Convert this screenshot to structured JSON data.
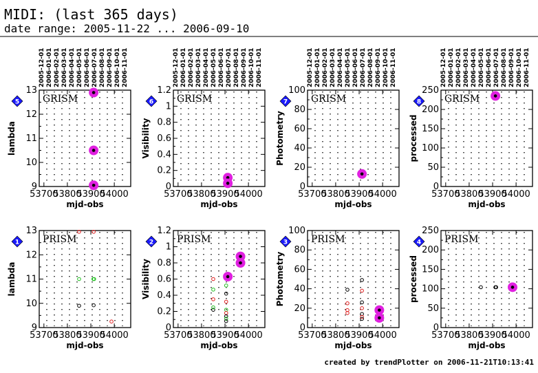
{
  "header": {
    "title": "MIDI: (last 365 days)",
    "subtitle": "date range: 2005-11-22 ... 2006-09-10"
  },
  "footer": "created by trendPlotter on 2006-11-21T10:13:41",
  "colors": {
    "highlight": "#e020e0",
    "badge": "#1a1aff",
    "red": "#e02020",
    "green": "#20c020"
  },
  "chart_data": [
    {
      "type": "scatter",
      "panel": 5,
      "label": "GRISM",
      "ylabel": "lambda",
      "xlabel": "mjd-obs",
      "ylim": [
        9,
        13
      ],
      "yticks": [
        9,
        10,
        11,
        12,
        13
      ],
      "xlim": [
        53680,
        54070
      ],
      "xticks": [
        53700,
        53800,
        53900,
        54000
      ],
      "xticklabels": [
        "53700",
        "53800",
        "53900",
        "54000"
      ],
      "top_dates": [
        "2005-12-01",
        "2006-01-01",
        "2006-02-01",
        "2006-03-01",
        "2006-04-01",
        "2006-05-01",
        "2006-06-01",
        "2006-07-01",
        "2006-08-01",
        "2006-09-01",
        "2006-10-01",
        "2006-11-01"
      ],
      "points": [
        {
          "x": 53912,
          "y": 12.9,
          "hl": true
        },
        {
          "x": 53912,
          "y": 10.5,
          "hl": true
        },
        {
          "x": 53912,
          "y": 9.05,
          "hl": true
        }
      ]
    },
    {
      "type": "scatter",
      "panel": 6,
      "label": "GRISM",
      "ylabel": "Visibility",
      "xlabel": "mjd-obs",
      "ylim": [
        0,
        1.2
      ],
      "yticks": [
        0,
        0.2,
        0.4,
        0.6,
        0.8,
        1,
        1.2
      ],
      "xlim": [
        53680,
        54070
      ],
      "xticks": [
        53700,
        53800,
        53900,
        54000
      ],
      "xticklabels": [
        "53700",
        "53800",
        "53900",
        "54000"
      ],
      "top_dates": [
        "2005-12-01",
        "2006-01-01",
        "2006-02-01",
        "2006-03-01",
        "2006-04-01",
        "2006-05-01",
        "2006-06-01",
        "2006-07-01",
        "2006-08-01",
        "2006-09-01",
        "2006-10-01",
        "2006-11-01"
      ],
      "points": [
        {
          "x": 53912,
          "y": 0.11,
          "hl": true
        },
        {
          "x": 53912,
          "y": 0.04,
          "hl": true
        }
      ]
    },
    {
      "type": "scatter",
      "panel": 7,
      "label": "GRISM",
      "ylabel": "Photometry",
      "xlabel": "mjd-obs",
      "ylim": [
        0,
        100
      ],
      "yticks": [
        0,
        20,
        40,
        60,
        80,
        100
      ],
      "xlim": [
        53680,
        54070
      ],
      "xticks": [
        53700,
        53800,
        53900,
        54000
      ],
      "xticklabels": [
        "53700",
        "53800",
        "53900",
        "54000"
      ],
      "top_dates": [
        "2005-12-01",
        "2006-01-01",
        "2006-02-01",
        "2006-03-01",
        "2006-04-01",
        "2006-05-01",
        "2006-06-01",
        "2006-07-01",
        "2006-08-01",
        "2006-09-01",
        "2006-10-01",
        "2006-11-01"
      ],
      "points": [
        {
          "x": 53912,
          "y": 13,
          "hl": true
        }
      ]
    },
    {
      "type": "scatter",
      "panel": 8,
      "label": "GRISM",
      "ylabel": "processed",
      "xlabel": "mjd-obs",
      "ylim": [
        0,
        250
      ],
      "yticks": [
        0,
        50,
        100,
        150,
        200,
        250
      ],
      "xlim": [
        53680,
        54070
      ],
      "xticks": [
        53700,
        53800,
        53900,
        54000
      ],
      "xticklabels": [
        "53700",
        "53800",
        "53900",
        "54000"
      ],
      "top_dates": [
        "2005-12-01",
        "2006-01-01",
        "2006-02-01",
        "2006-03-01",
        "2006-04-01",
        "2006-05-01",
        "2006-06-01",
        "2006-07-01",
        "2006-08-01",
        "2006-09-01",
        "2006-10-01",
        "2006-11-01"
      ],
      "points": [
        {
          "x": 53912,
          "y": 235,
          "hl": true
        }
      ]
    },
    {
      "type": "scatter",
      "panel": 1,
      "label": "PRISM",
      "ylabel": "lambda",
      "xlabel": "mjd-obs",
      "ylim": [
        9,
        13
      ],
      "yticks": [
        9,
        10,
        11,
        12,
        13
      ],
      "xlim": [
        53680,
        54070
      ],
      "xticks": [
        53700,
        53800,
        53900,
        54000
      ],
      "xticklabels": [
        "53700",
        "53800",
        "53900",
        "54000"
      ],
      "points": [
        {
          "x": 53850,
          "y": 12.95,
          "c": "red"
        },
        {
          "x": 53912,
          "y": 12.95,
          "c": "red"
        },
        {
          "x": 53850,
          "y": 11.0,
          "c": "green"
        },
        {
          "x": 53911,
          "y": 11.0,
          "c": "green"
        },
        {
          "x": 53914,
          "y": 11.0,
          "c": "green"
        },
        {
          "x": 53850,
          "y": 9.9,
          "c": "black"
        },
        {
          "x": 53912,
          "y": 9.92,
          "c": "black"
        },
        {
          "x": 53988,
          "y": 9.25,
          "c": "red"
        }
      ]
    },
    {
      "type": "scatter",
      "panel": 2,
      "label": "PRISM",
      "ylabel": "Visibility",
      "xlabel": "mjd-obs",
      "ylim": [
        0,
        1.2
      ],
      "yticks": [
        0,
        0.2,
        0.4,
        0.6,
        0.8,
        1,
        1.2
      ],
      "xlim": [
        53680,
        54070
      ],
      "xticks": [
        53700,
        53800,
        53900,
        54000
      ],
      "xticklabels": [
        "53700",
        "53800",
        "53900",
        "54000"
      ],
      "points": [
        {
          "x": 53850,
          "y": 0.6,
          "c": "red"
        },
        {
          "x": 53850,
          "y": 0.47,
          "c": "green"
        },
        {
          "x": 53850,
          "y": 0.35,
          "c": "red"
        },
        {
          "x": 53850,
          "y": 0.22,
          "c": "black"
        },
        {
          "x": 53850,
          "y": 0.25,
          "c": "green"
        },
        {
          "x": 53905,
          "y": 0.52,
          "c": "green"
        },
        {
          "x": 53905,
          "y": 0.42,
          "c": "black"
        },
        {
          "x": 53905,
          "y": 0.32,
          "c": "red"
        },
        {
          "x": 53905,
          "y": 0.22,
          "c": "green"
        },
        {
          "x": 53905,
          "y": 0.18,
          "c": "red"
        },
        {
          "x": 53905,
          "y": 0.14,
          "c": "black"
        },
        {
          "x": 53905,
          "y": 0.11,
          "c": "green"
        },
        {
          "x": 53905,
          "y": 0.08,
          "c": "black"
        },
        {
          "x": 53912,
          "y": 0.63,
          "hl": true
        },
        {
          "x": 53966,
          "y": 0.88,
          "hl": true
        },
        {
          "x": 53966,
          "y": 0.8,
          "hl": true
        }
      ]
    },
    {
      "type": "scatter",
      "panel": 3,
      "label": "PRISM",
      "ylabel": "Photometry",
      "xlabel": "mjd-obs",
      "ylim": [
        0,
        100
      ],
      "yticks": [
        0,
        20,
        40,
        60,
        80,
        100
      ],
      "xlim": [
        53680,
        54070
      ],
      "xticks": [
        53700,
        53800,
        53900,
        54000
      ],
      "xticklabels": [
        "53700",
        "53800",
        "53900",
        "54000"
      ],
      "points": [
        {
          "x": 53850,
          "y": 39,
          "c": "black"
        },
        {
          "x": 53850,
          "y": 25,
          "c": "red"
        },
        {
          "x": 53850,
          "y": 18,
          "c": "red"
        },
        {
          "x": 53850,
          "y": 15,
          "c": "red"
        },
        {
          "x": 53912,
          "y": 49,
          "c": "black"
        },
        {
          "x": 53912,
          "y": 38,
          "c": "red"
        },
        {
          "x": 53912,
          "y": 26,
          "c": "black"
        },
        {
          "x": 53912,
          "y": 20,
          "c": "red"
        },
        {
          "x": 53912,
          "y": 14,
          "c": "black"
        },
        {
          "x": 53912,
          "y": 11,
          "c": "red"
        },
        {
          "x": 53912,
          "y": 9,
          "c": "black"
        },
        {
          "x": 53986,
          "y": 18,
          "hl": true
        },
        {
          "x": 53986,
          "y": 10,
          "hl": true
        }
      ]
    },
    {
      "type": "scatter",
      "panel": 4,
      "label": "PRISM",
      "ylabel": "processed",
      "xlabel": "mjd-obs",
      "ylim": [
        0,
        250
      ],
      "yticks": [
        0,
        50,
        100,
        150,
        200,
        250
      ],
      "xlim": [
        53680,
        54070
      ],
      "xticks": [
        53700,
        53800,
        53900,
        54000
      ],
      "xticklabels": [
        "53700",
        "53800",
        "53900",
        "54000"
      ],
      "points": [
        {
          "x": 53850,
          "y": 104,
          "c": "black"
        },
        {
          "x": 53912,
          "y": 104,
          "c": "black"
        },
        {
          "x": 53915,
          "y": 104,
          "c": "black"
        },
        {
          "x": 53985,
          "y": 104,
          "hl": true
        }
      ]
    }
  ]
}
